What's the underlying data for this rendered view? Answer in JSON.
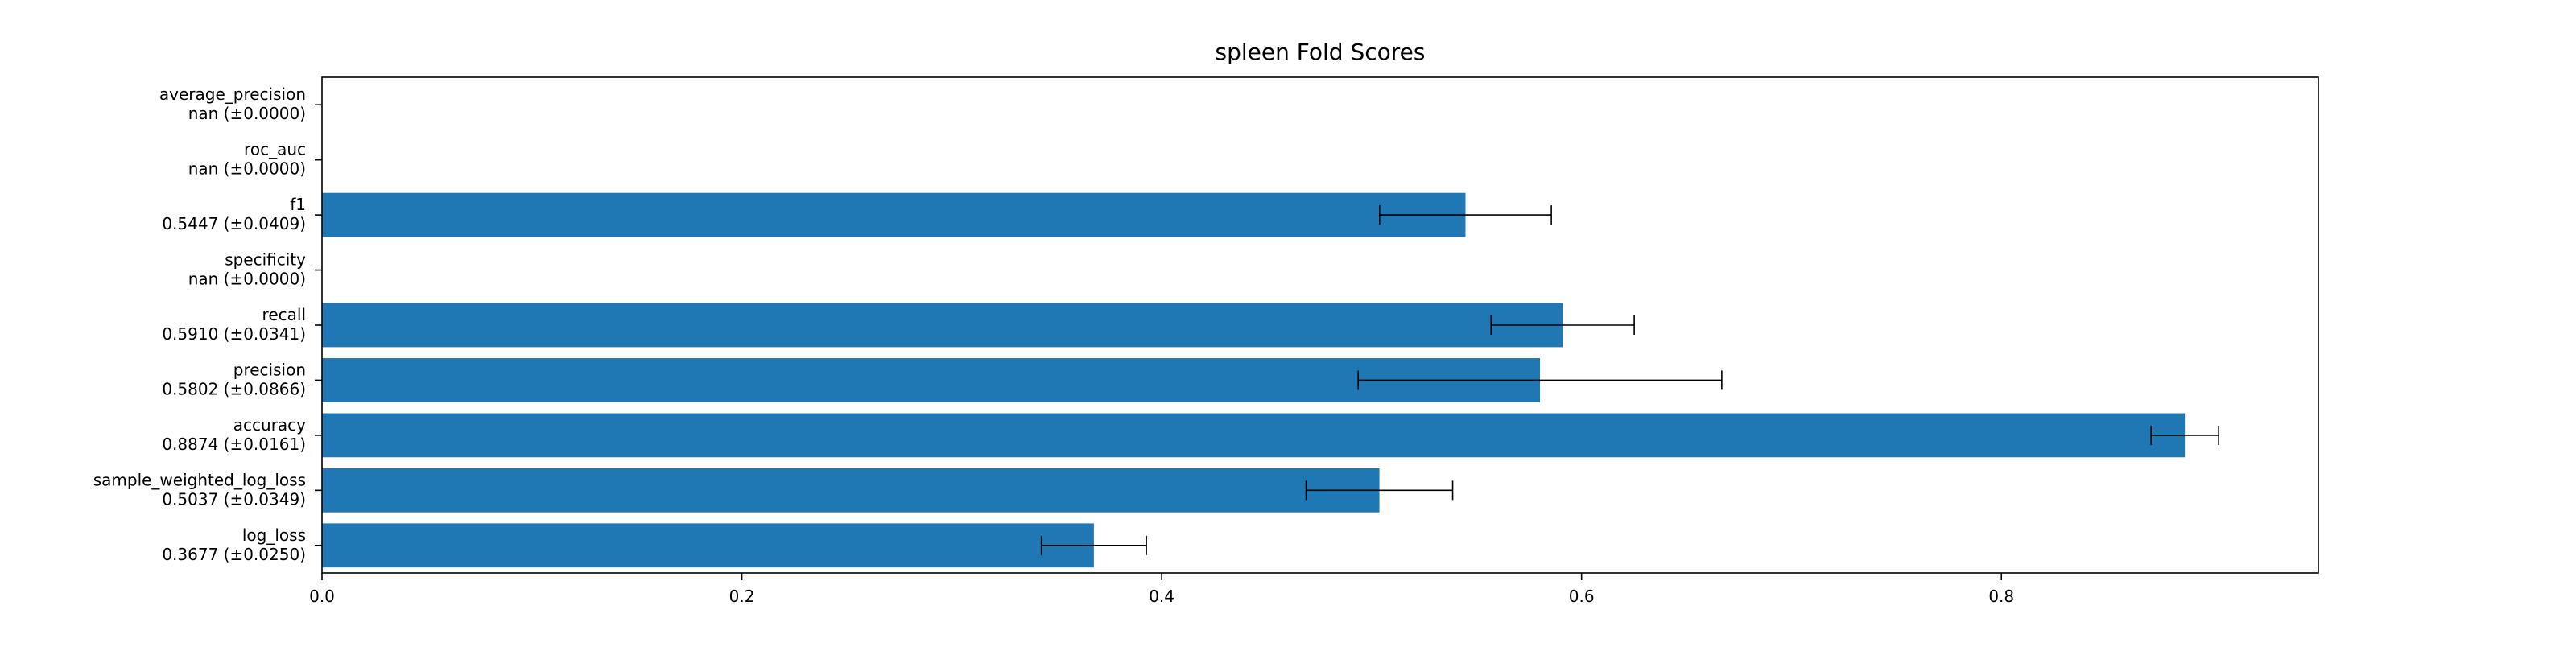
{
  "chart_data": {
    "type": "bar",
    "orientation": "horizontal",
    "title": "spleen Fold Scores",
    "xlabel": "",
    "ylabel": "",
    "xlim": [
      0,
      0.951
    ],
    "xticks": [
      0.0,
      0.2,
      0.4,
      0.6,
      0.8
    ],
    "xtick_labels": [
      "0.0",
      "0.2",
      "0.4",
      "0.6",
      "0.8"
    ],
    "grid": false,
    "bar_color": "#1f77b4",
    "errorbar_color": "#000000",
    "categories": [
      "average_precision",
      "roc_auc",
      "f1",
      "specificity",
      "recall",
      "precision",
      "accuracy",
      "sample_weighted_log_loss",
      "log_loss"
    ],
    "value_labels": [
      "nan (±0.0000)",
      "nan (±0.0000)",
      "0.5447 (±0.0409)",
      "nan (±0.0000)",
      "0.5910 (±0.0341)",
      "0.5802 (±0.0866)",
      "0.8874 (±0.0161)",
      "0.5037 (±0.0349)",
      "0.3677 (±0.0250)"
    ],
    "values": [
      null,
      null,
      0.5447,
      null,
      0.591,
      0.5802,
      0.8874,
      0.5037,
      0.3677
    ],
    "errors": [
      0.0,
      0.0,
      0.0409,
      0.0,
      0.0341,
      0.0866,
      0.0161,
      0.0349,
      0.025
    ]
  }
}
